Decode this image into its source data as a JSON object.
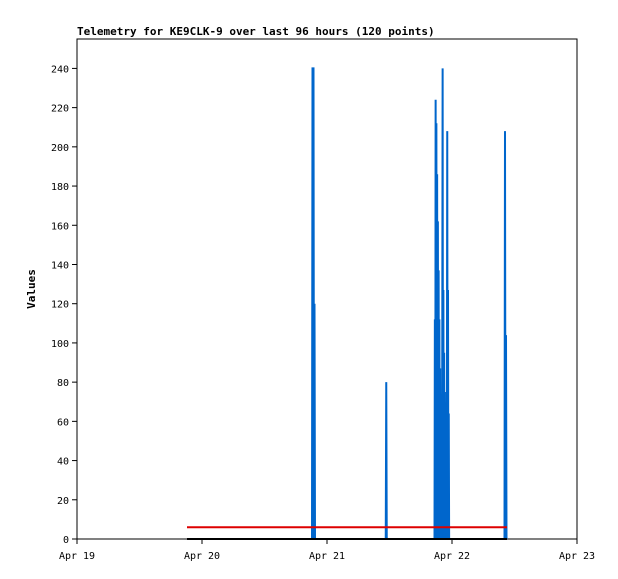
{
  "chart_data": {
    "type": "line",
    "title": "Telemetry for KE9CLK-9 over last 96 hours (120 points)",
    "xlabel": "",
    "ylabel": "Values",
    "xlim": [
      "Apr 19",
      "Apr 23"
    ],
    "ylim": [
      0,
      255
    ],
    "y_ticks": [
      0,
      20,
      40,
      60,
      80,
      100,
      120,
      140,
      160,
      180,
      200,
      220,
      240
    ],
    "x_ticks": [
      {
        "label": "Apr 19",
        "day": 19
      },
      {
        "label": "Apr 20",
        "day": 20
      },
      {
        "label": "Apr 21",
        "day": 21
      },
      {
        "label": "Apr 22",
        "day": 22
      },
      {
        "label": "Apr 23",
        "day": 23
      }
    ],
    "grid": false,
    "legend": "none",
    "series": [
      {
        "color": "#0066cc",
        "points": [
          [
            20.0,
            0
          ],
          [
            20.88,
            0
          ],
          [
            20.884,
            240
          ],
          [
            20.892,
            240
          ],
          [
            20.896,
            0
          ],
          [
            20.9,
            120
          ],
          [
            20.904,
            0
          ],
          [
            21.47,
            0
          ],
          [
            21.474,
            80
          ],
          [
            21.478,
            0
          ],
          [
            21.86,
            0
          ],
          [
            21.863,
            112
          ],
          [
            21.866,
            0
          ],
          [
            21.869,
            224
          ],
          [
            21.872,
            0
          ],
          [
            21.875,
            212
          ],
          [
            21.878,
            0
          ],
          [
            21.881,
            186
          ],
          [
            21.884,
            0
          ],
          [
            21.887,
            162
          ],
          [
            21.89,
            0
          ],
          [
            21.893,
            137
          ],
          [
            21.896,
            0
          ],
          [
            21.899,
            112
          ],
          [
            21.902,
            0
          ],
          [
            21.905,
            87
          ],
          [
            21.908,
            0
          ],
          [
            21.911,
            62
          ],
          [
            21.914,
            0
          ],
          [
            21.917,
            37
          ],
          [
            21.92,
            0
          ],
          [
            21.925,
            240
          ],
          [
            21.928,
            0
          ],
          [
            21.931,
            127
          ],
          [
            21.934,
            0
          ],
          [
            21.937,
            95
          ],
          [
            21.94,
            0
          ],
          [
            21.943,
            75
          ],
          [
            21.946,
            0
          ],
          [
            21.949,
            52
          ],
          [
            21.952,
            0
          ],
          [
            21.955,
            27
          ],
          [
            21.958,
            0
          ],
          [
            21.962,
            208
          ],
          [
            21.965,
            0
          ],
          [
            21.968,
            127
          ],
          [
            21.971,
            0
          ],
          [
            21.974,
            64
          ],
          [
            21.977,
            0
          ],
          [
            22.42,
            0
          ],
          [
            22.424,
            208
          ],
          [
            22.428,
            0
          ],
          [
            22.432,
            104
          ],
          [
            22.436,
            0
          ]
        ]
      },
      {
        "color": "#dd0000",
        "points": [
          [
            19.88,
            6
          ],
          [
            22.44,
            6
          ]
        ]
      },
      {
        "color": "#000000",
        "points": [
          [
            19.88,
            0
          ],
          [
            22.44,
            0
          ]
        ]
      }
    ]
  }
}
